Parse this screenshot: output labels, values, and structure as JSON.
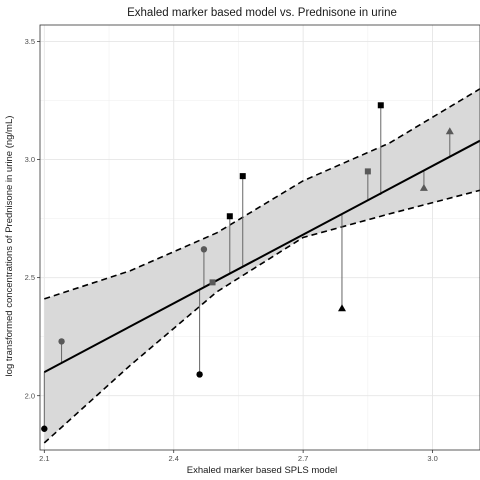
{
  "chart_data": {
    "type": "scatter",
    "title": "Exhaled marker based model vs. Prednisone in urine",
    "xlabel": "Exhaled marker based SPLS model",
    "ylabel": "log transformed concentrations of Prednisone in urine (ng/mL)",
    "xlim": [
      2.09,
      3.11
    ],
    "ylim": [
      1.77,
      3.57
    ],
    "x_ticks": [
      2.1,
      2.4,
      2.7,
      3.0
    ],
    "x_tick_labels": [
      "2.1",
      "2.4",
      "2.7",
      "3.0"
    ],
    "y_ticks": [
      2.0,
      2.5,
      3.0,
      3.5
    ],
    "y_tick_labels": [
      "2.0",
      "2.5",
      "3.0",
      "3.5"
    ],
    "grid": true,
    "fit_line": {
      "x": [
        2.1,
        3.11
      ],
      "y": [
        2.1,
        3.08
      ]
    },
    "confidence_band": {
      "x": [
        2.1,
        2.3,
        2.5,
        2.7,
        2.9,
        3.11
      ],
      "lower": [
        1.8,
        2.13,
        2.44,
        2.67,
        2.77,
        2.87
      ],
      "upper": [
        2.41,
        2.53,
        2.69,
        2.91,
        3.07,
        3.3
      ]
    },
    "points": [
      {
        "x": 2.1,
        "y": 1.86,
        "fitted": 2.1,
        "marker": "circle",
        "color": "#000000"
      },
      {
        "x": 2.14,
        "y": 2.23,
        "fitted": 2.14,
        "marker": "circle",
        "color": "#595959"
      },
      {
        "x": 2.46,
        "y": 2.09,
        "fitted": 2.45,
        "marker": "circle",
        "color": "#000000"
      },
      {
        "x": 2.47,
        "y": 2.62,
        "fitted": 2.46,
        "marker": "circle",
        "color": "#595959"
      },
      {
        "x": 2.49,
        "y": 2.48,
        "fitted": 2.48,
        "marker": "square",
        "color": "#595959"
      },
      {
        "x": 2.53,
        "y": 2.76,
        "fitted": 2.52,
        "marker": "square",
        "color": "#000000"
      },
      {
        "x": 2.56,
        "y": 2.93,
        "fitted": 2.55,
        "marker": "square",
        "color": "#000000"
      },
      {
        "x": 2.79,
        "y": 2.37,
        "fitted": 2.77,
        "marker": "triangle",
        "color": "#000000"
      },
      {
        "x": 2.85,
        "y": 2.95,
        "fitted": 2.83,
        "marker": "square",
        "color": "#595959"
      },
      {
        "x": 2.88,
        "y": 3.23,
        "fitted": 2.85,
        "marker": "square",
        "color": "#000000"
      },
      {
        "x": 2.98,
        "y": 2.88,
        "fitted": 2.95,
        "marker": "triangle",
        "color": "#595959"
      },
      {
        "x": 3.04,
        "y": 3.12,
        "fitted": 3.01,
        "marker": "triangle",
        "color": "#595959"
      }
    ],
    "colors": {
      "band_fill": "#d9d9d9",
      "line": "#000000",
      "residual": "#666666"
    }
  }
}
